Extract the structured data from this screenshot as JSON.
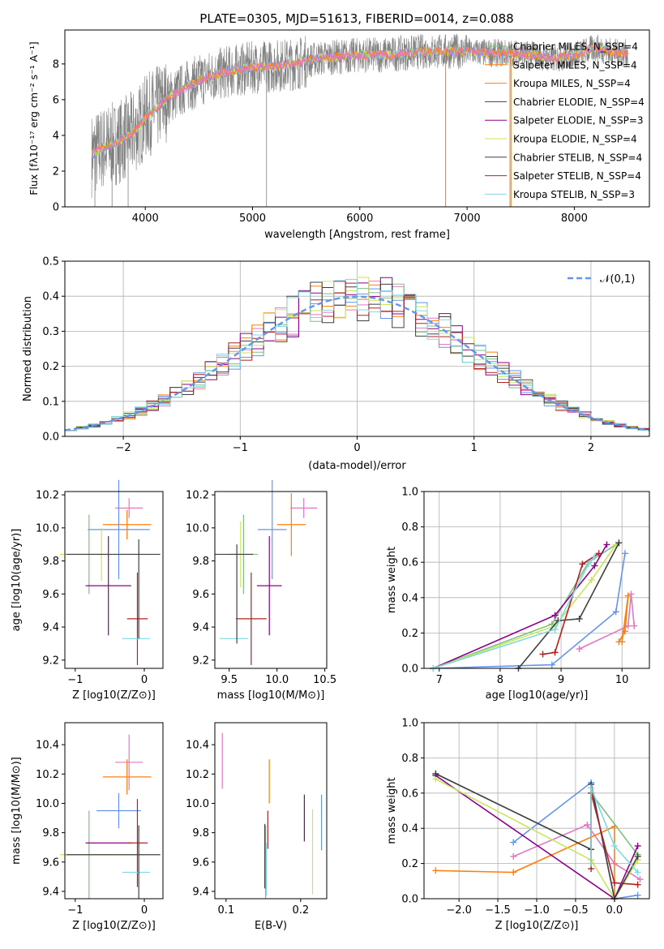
{
  "colors": [
    "#e377c2",
    "#ff7f0e",
    "#6495ed",
    "#7fbf7f",
    "#8b008b",
    "#c8e65a",
    "#404040",
    "#b22222",
    "#7fd8e0"
  ],
  "chart_data": [
    {
      "type": "line",
      "title": "PLATE=0305, MJD=51613, FIBERID=0014, z=0.088",
      "xlabel": "wavelength [Angstrom, rest frame]",
      "ylabel": "Flux [fλ10⁻¹⁷ erg cm⁻² s⁻¹ A⁻¹]",
      "xlim": [
        3250,
        8700
      ],
      "ylim": [
        0,
        9.9
      ],
      "xticks": [
        "4000",
        "5000",
        "6000",
        "7000",
        "8000"
      ],
      "yticks": [
        "0",
        "2",
        "4",
        "6",
        "8"
      ],
      "data_label": "data",
      "x": [
        3500,
        3600,
        3700,
        3800,
        3900,
        4000,
        4200,
        4400,
        4600,
        4800,
        5000,
        5200,
        5400,
        5600,
        5800,
        6000,
        6200,
        6400,
        6600,
        6800,
        7000,
        7200,
        7400,
        7600,
        7800,
        8000,
        8200,
        8400
      ],
      "y": [
        2.9,
        3.3,
        3.5,
        3.8,
        4.2,
        5.0,
        6.0,
        6.8,
        7.3,
        7.6,
        7.8,
        7.9,
        8.0,
        8.3,
        8.4,
        8.5,
        8.5,
        8.6,
        8.7,
        8.7,
        8.7,
        8.6,
        8.6,
        8.5,
        8.3,
        8.5,
        8.9,
        8.6
      ],
      "series": [
        {
          "name": "Chabrier MILES, N_SSP=4"
        },
        {
          "name": "Salpeter MILES, N_SSP=4"
        },
        {
          "name": "Kroupa MILES, N_SSP=4"
        },
        {
          "name": "Chabrier ELODIE, N_SSP=4"
        },
        {
          "name": "Salpeter ELODIE, N_SSP=3"
        },
        {
          "name": "Kroupa ELODIE, N_SSP=4"
        },
        {
          "name": "Chabrier STELIB, N_SSP=4"
        },
        {
          "name": "Salpeter STELIB, N_SSP=4"
        },
        {
          "name": "Kroupa STELIB, N_SSP=3"
        }
      ],
      "legend": "top-right"
    },
    {
      "type": "line",
      "xlabel": "(data-model)/error",
      "ylabel": "Normed distribution",
      "xlim": [
        -2.5,
        2.5
      ],
      "ylim": [
        0,
        0.5
      ],
      "xticks": [
        "−2",
        "−1",
        "0",
        "1",
        "2"
      ],
      "yticks": [
        "0.0",
        "0.1",
        "0.2",
        "0.3",
        "0.4",
        "0.5"
      ],
      "gaussian_label": "𝒩(0,1)",
      "bins": [
        -2.5,
        -2.4,
        -2.3,
        -2.2,
        -2.1,
        -2.0,
        -1.9,
        -1.8,
        -1.7,
        -1.6,
        -1.5,
        -1.4,
        -1.3,
        -1.2,
        -1.1,
        -1.0,
        -0.9,
        -0.8,
        -0.7,
        -0.6,
        -0.5,
        -0.4,
        -0.3,
        -0.2,
        -0.1,
        0.0,
        0.1,
        0.2,
        0.3,
        0.4,
        0.5,
        0.6,
        0.7,
        0.8,
        0.9,
        1.0,
        1.1,
        1.2,
        1.3,
        1.4,
        1.5,
        1.6,
        1.7,
        1.8,
        1.9,
        2.0,
        2.1,
        2.2,
        2.3,
        2.4,
        2.5
      ],
      "grid": true,
      "legend": "top-right"
    },
    {
      "type": "scatter",
      "xlabel": "Z [log10(Z/Z⊙)]",
      "ylabel": "age [log10(age/yr)]",
      "xlim": [
        -1.15,
        0.27
      ],
      "ylim": [
        9.15,
        10.22
      ],
      "xticks": [
        "−1",
        "0"
      ],
      "xtick_vals": [
        -1,
        0
      ],
      "yticks": [
        "9.2",
        "9.4",
        "9.6",
        "9.8",
        "10.0",
        "10.2"
      ],
      "ytick_vals": [
        9.2,
        9.4,
        9.6,
        9.8,
        10.0,
        10.2
      ],
      "points": [
        {
          "x": -0.22,
          "xerr": 0.2,
          "y": 10.12,
          "yerr": 0.06,
          "c": 0
        },
        {
          "x": -0.25,
          "xerr": 0.35,
          "y": 10.02,
          "yerr": 0.09,
          "c": 1
        },
        {
          "x": -0.37,
          "xerr": 0.45,
          "y": 9.99,
          "yerr": 0.3,
          "c": 2
        },
        {
          "x": -0.8,
          "xerr": 0.3,
          "y": 9.84,
          "yerr": 0.24,
          "c": 3
        },
        {
          "x": -0.52,
          "xerr": 0.33,
          "y": 9.65,
          "yerr": 0.3,
          "c": 4
        },
        {
          "x": -0.62,
          "xerr": 0.6,
          "y": 9.84,
          "yerr": 0.16,
          "c": 5
        },
        {
          "x": -0.45,
          "xerr": 0.68,
          "y": 9.84,
          "yerr": 0.0,
          "c": 6
        },
        {
          "x": -0.1,
          "xerr": 0.15,
          "y": 9.45,
          "yerr": 0.28,
          "c": 7
        },
        {
          "x": -0.12,
          "xerr": 0.2,
          "y": 9.33,
          "yerr": 0.0,
          "c": 8
        },
        {
          "x": -0.08,
          "xerr": 0.0,
          "y": 9.63,
          "yerr": 0.3,
          "c": 6
        }
      ]
    },
    {
      "type": "scatter",
      "xlabel": "mass [log10(M/M⊙)]",
      "ylabel": "",
      "xlim": [
        9.35,
        10.52
      ],
      "ylim": [
        9.15,
        10.22
      ],
      "xticks": [
        "9.5",
        "10.0",
        "10.5"
      ],
      "xtick_vals": [
        9.5,
        10.0,
        10.5
      ],
      "yticks": [
        "9.2",
        "9.4",
        "9.6",
        "9.8",
        "10.0",
        "10.2"
      ],
      "ytick_vals": [
        9.2,
        9.4,
        9.6,
        9.8,
        10.0,
        10.2
      ],
      "points": [
        {
          "x": 10.28,
          "xerr": 0.14,
          "y": 10.12,
          "yerr": 0.06,
          "c": 0
        },
        {
          "x": 10.15,
          "xerr": 0.15,
          "y": 10.02,
          "yerr": 0.19,
          "c": 1
        },
        {
          "x": 9.95,
          "xerr": 0.15,
          "y": 9.99,
          "yerr": 0.3,
          "c": 2
        },
        {
          "x": 9.65,
          "xerr": 0.15,
          "y": 9.84,
          "yerr": 0.24,
          "c": 3
        },
        {
          "x": 9.92,
          "xerr": 0.13,
          "y": 9.65,
          "yerr": 0.3,
          "c": 4
        },
        {
          "x": 9.62,
          "xerr": 0.1,
          "y": 9.84,
          "yerr": 0.2,
          "c": 5
        },
        {
          "x": 9.55,
          "xerr": 0.2,
          "y": 9.84,
          "yerr": 0.0,
          "c": 6
        },
        {
          "x": 9.73,
          "xerr": 0.16,
          "y": 9.45,
          "yerr": 0.28,
          "c": 7
        },
        {
          "x": 9.55,
          "xerr": 0.15,
          "y": 9.33,
          "yerr": 0.0,
          "c": 8
        },
        {
          "x": 9.58,
          "xerr": 0.0,
          "y": 9.6,
          "yerr": 0.3,
          "c": 6
        }
      ]
    },
    {
      "type": "line",
      "xlabel": "age  [log10(age/yr)]",
      "ylabel": "mass weight",
      "xlim": [
        6.75,
        10.45
      ],
      "ylim": [
        0,
        1
      ],
      "xticks": [
        "7",
        "8",
        "9",
        "10"
      ],
      "xtick_vals": [
        7,
        8,
        9,
        10
      ],
      "yticks": [
        "0.0",
        "0.2",
        "0.4",
        "0.6",
        "0.8",
        "1.0"
      ],
      "ytick_vals": [
        0,
        0.2,
        0.4,
        0.6,
        0.8,
        1.0
      ],
      "series": [
        {
          "c": 0,
          "x": [
            9.3,
            10.1,
            10.15,
            10.2
          ],
          "y": [
            0.11,
            0.24,
            0.42,
            0.24
          ]
        },
        {
          "c": 1,
          "x": [
            9.95,
            10.05,
            10.1,
            10.0
          ],
          "y": [
            0.15,
            0.21,
            0.41,
            0.15
          ]
        },
        {
          "c": 2,
          "x": [
            6.9,
            8.85,
            9.9,
            10.05
          ],
          "y": [
            0.0,
            0.02,
            0.32,
            0.65
          ]
        },
        {
          "c": 3,
          "x": [
            6.9,
            8.85,
            9.45,
            9.95
          ],
          "y": [
            0.0,
            0.25,
            0.6,
            0.71
          ]
        },
        {
          "c": 4,
          "x": [
            6.9,
            8.9,
            9.55,
            9.75
          ],
          "y": [
            0.0,
            0.3,
            0.58,
            0.7
          ]
        },
        {
          "c": 5,
          "x": [
            6.9,
            8.9,
            9.5,
            9.9
          ],
          "y": [
            0.0,
            0.24,
            0.5,
            0.7
          ]
        },
        {
          "c": 6,
          "x": [
            8.3,
            8.95,
            9.3,
            9.95
          ],
          "y": [
            0.0,
            0.27,
            0.28,
            0.71
          ]
        },
        {
          "c": 7,
          "x": [
            8.7,
            8.9,
            9.35,
            9.62
          ],
          "y": [
            0.08,
            0.09,
            0.59,
            0.65
          ]
        },
        {
          "c": 8,
          "x": [
            6.9,
            8.9,
            9.45,
            9.55
          ],
          "y": [
            0.0,
            0.22,
            0.59,
            0.63
          ]
        }
      ]
    },
    {
      "type": "scatter",
      "xlabel": "Z [log10(Z/Z⊙)]",
      "ylabel": "mass [log10(M/M⊙)]",
      "xlim": [
        -1.15,
        0.27
      ],
      "ylim": [
        9.35,
        10.55
      ],
      "xticks": [
        "−1",
        "0"
      ],
      "xtick_vals": [
        -1,
        0
      ],
      "yticks": [
        "9.4",
        "9.6",
        "9.8",
        "10.0",
        "10.2",
        "10.4"
      ],
      "ytick_vals": [
        9.4,
        9.6,
        9.8,
        10.0,
        10.2,
        10.4
      ],
      "points": [
        {
          "x": -0.22,
          "xerr": 0.2,
          "y": 10.28,
          "yerr": 0.19,
          "c": 0
        },
        {
          "x": -0.25,
          "xerr": 0.35,
          "y": 10.18,
          "yerr": 0.12,
          "c": 1
        },
        {
          "x": -0.37,
          "xerr": 0.32,
          "y": 9.95,
          "yerr": 0.12,
          "c": 2
        },
        {
          "x": -0.8,
          "xerr": 0.3,
          "y": 9.65,
          "yerr": 0.3,
          "c": 3
        },
        {
          "x": -0.52,
          "xerr": 0.33,
          "y": 9.73,
          "yerr": 0.0,
          "c": 4
        },
        {
          "x": -0.62,
          "xerr": 0.6,
          "y": 9.65,
          "yerr": 0.0,
          "c": 5
        },
        {
          "x": -0.45,
          "xerr": 0.68,
          "y": 9.65,
          "yerr": 0.0,
          "c": 6
        },
        {
          "x": -0.1,
          "xerr": 0.15,
          "y": 9.73,
          "yerr": 0.3,
          "c": 7
        },
        {
          "x": -0.12,
          "xerr": 0.2,
          "y": 9.53,
          "yerr": 0.0,
          "c": 8
        },
        {
          "x": -0.08,
          "xerr": 0.0,
          "y": 9.6,
          "yerr": 0.25,
          "c": 6
        }
      ]
    },
    {
      "type": "scatter",
      "xlabel": "E(B-V)",
      "ylabel": "",
      "xlim": [
        0.085,
        0.235
      ],
      "ylim": [
        9.35,
        10.55
      ],
      "xticks": [
        "0.1",
        "0.2"
      ],
      "xtick_vals": [
        0.1,
        0.2
      ],
      "yticks": [
        "9.4",
        "9.6",
        "9.8",
        "10.0",
        "10.2",
        "10.4"
      ],
      "ytick_vals": [
        9.4,
        9.6,
        9.8,
        10.0,
        10.2,
        10.4
      ],
      "points": [
        {
          "x": 0.095,
          "y": 10.29,
          "yerr": 0.19,
          "c": 0
        },
        {
          "x": 0.158,
          "y": 10.15,
          "yerr": 0.15,
          "c": 1
        },
        {
          "x": 0.228,
          "y": 9.87,
          "yerr": 0.19,
          "c": 2
        },
        {
          "x": 0.153,
          "y": 9.6,
          "yerr": 0.25,
          "c": 3
        },
        {
          "x": 0.205,
          "y": 9.9,
          "yerr": 0.16,
          "c": 4
        },
        {
          "x": 0.216,
          "y": 9.67,
          "yerr": 0.29,
          "c": 5
        },
        {
          "x": 0.152,
          "y": 9.64,
          "yerr": 0.22,
          "c": 6
        },
        {
          "x": 0.156,
          "y": 9.82,
          "yerr": 0.13,
          "c": 7
        },
        {
          "x": 0.154,
          "y": 9.55,
          "yerr": 0.18,
          "c": 8
        }
      ]
    },
    {
      "type": "line",
      "xlabel": "Z [log10(Z/Z⊙)]",
      "ylabel": "mass weight",
      "xlim": [
        -2.45,
        0.45
      ],
      "ylim": [
        0,
        1
      ],
      "xticks": [
        "−2.0",
        "−1.5",
        "−1.0",
        "−0.5",
        "0.0"
      ],
      "xtick_vals": [
        -2,
        -1.5,
        -1,
        -0.5,
        0
      ],
      "yticks": [
        "0.0",
        "0.2",
        "0.4",
        "0.6",
        "0.8",
        "1.0"
      ],
      "ytick_vals": [
        0,
        0.2,
        0.4,
        0.6,
        0.8,
        1.0
      ],
      "series": [
        {
          "c": 0,
          "x": [
            -1.3,
            -0.35,
            0.0,
            0.33
          ],
          "y": [
            0.24,
            0.42,
            0.2,
            0.11
          ]
        },
        {
          "c": 1,
          "x": [
            -2.3,
            -1.3,
            0.0,
            0.0
          ],
          "y": [
            0.16,
            0.15,
            0.41,
            0.0
          ]
        },
        {
          "c": 2,
          "x": [
            -1.3,
            -0.3,
            0.0,
            0.3
          ],
          "y": [
            0.32,
            0.66,
            0.0,
            0.02
          ]
        },
        {
          "c": 3,
          "x": [
            -2.3,
            -0.3,
            -0.3,
            0.3
          ],
          "y": [
            0.71,
            0.28,
            0.6,
            0.25
          ]
        },
        {
          "c": 4,
          "x": [
            -2.3,
            0.0,
            0.3
          ],
          "y": [
            0.7,
            0.0,
            0.3
          ]
        },
        {
          "c": 5,
          "x": [
            -2.3,
            -0.3,
            0.0,
            0.3
          ],
          "y": [
            0.68,
            0.22,
            0.0,
            0.22
          ]
        },
        {
          "c": 6,
          "x": [
            -2.3,
            -0.3,
            -0.3,
            0.0,
            0.3
          ],
          "y": [
            0.71,
            0.28,
            0.65,
            0.0,
            0.24
          ]
        },
        {
          "c": 7,
          "x": [
            -0.3,
            -0.3,
            0.0,
            0.3
          ],
          "y": [
            0.17,
            0.6,
            0.09,
            0.08
          ]
        },
        {
          "c": 8,
          "x": [
            -0.3,
            -0.3,
            0.0,
            0.3
          ],
          "y": [
            0.2,
            0.63,
            0.3,
            0.15
          ]
        }
      ]
    }
  ]
}
